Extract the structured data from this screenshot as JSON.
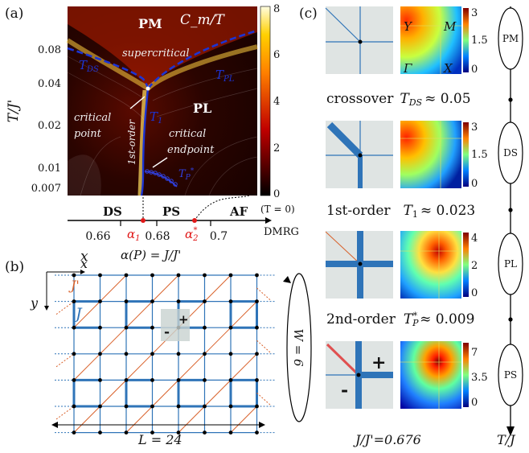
{
  "panel_a": {
    "label": "(a)",
    "quantity": "C_m/T",
    "y_axis_label": "T/J'",
    "y_ticks": [
      "0.08",
      "0.04",
      "0.02",
      "0.01",
      "0.007"
    ],
    "colorbar_ticks": [
      "8",
      "6",
      "4",
      "2",
      "0"
    ],
    "region_labels": {
      "pm": "PM",
      "pl": "PL",
      "supercritical": "supercritical",
      "critical_point_1": "critical",
      "critical_point_2": "point",
      "critical_endpoint_1": "critical",
      "critical_endpoint_2": "endpoint",
      "first_order": "1st-order"
    },
    "line_labels": {
      "t_ds": "T",
      "t_ds_sub": "DS",
      "t_pl": "T",
      "t_pl_sub": "PL",
      "t1": "T",
      "t1_sub": "1",
      "tp": "T",
      "tp_sub": "P",
      "tp_sup": "*"
    },
    "ground_state": {
      "phases": [
        "DS",
        "PS",
        "AF"
      ],
      "note": "(T = 0)",
      "method": "DMRG",
      "x_ticks": [
        "0.66",
        "0.68",
        "0.7"
      ],
      "alpha1": "α",
      "alpha1_sub": "1",
      "alpha2": "α",
      "alpha2_sub": "2",
      "alpha2_sup": "*",
      "x_label": "x",
      "alpha_def": "α(P) = J/J'"
    }
  },
  "panel_b": {
    "label": "(b)",
    "x_axis": "x",
    "y_axis": "y",
    "coupling_j_prime": "J'",
    "coupling_j": "J",
    "plus": "+",
    "minus": "-",
    "width_label": "W = 6",
    "length_label": "L = 24"
  },
  "panel_c": {
    "label": "(c)",
    "bz_labels": [
      "Y",
      "M",
      "Γ",
      "X"
    ],
    "rows": [
      {
        "cbar": [
          "3",
          "1.5",
          "0"
        ]
      },
      {
        "cbar": [
          "3",
          "1.5",
          "0"
        ]
      },
      {
        "cbar": [
          "4",
          "2",
          "0"
        ]
      },
      {
        "cbar": [
          "7",
          "3.5",
          "0"
        ]
      }
    ],
    "transitions": [
      {
        "name": "crossover",
        "temp": "T",
        "sub": "DS",
        "value": "≈ 0.05"
      },
      {
        "name": "1st-order",
        "temp": "T",
        "sub": "1",
        "value": "≈ 0.023"
      },
      {
        "name": "2nd-order",
        "temp": "T",
        "sub": "P",
        "sup": "*",
        "value": "≈ 0.009"
      }
    ],
    "ratio": "J/J'=0.676",
    "phase_nodes": [
      "PM",
      "DS",
      "PL",
      "PS"
    ],
    "axis_label": "T/J",
    "plus": "+",
    "minus": "-"
  },
  "colors": {
    "ds_line": "#1c34d4",
    "tp_line": "#1c34d4",
    "alpha_marker": "#e01818",
    "lattice_blue": "#2f74b8",
    "lattice_orange": "#d9612a",
    "sketch_bg": "#dfe4e3"
  }
}
